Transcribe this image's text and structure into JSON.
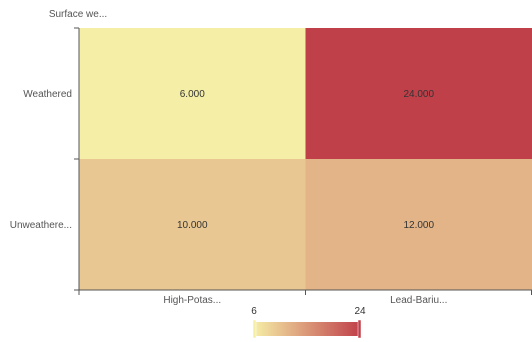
{
  "chart_data": {
    "type": "heatmap",
    "title": "",
    "ylabel": "Surface we...",
    "xlabel": "",
    "x_categories": [
      "High-Potas...",
      "Lead-Bariu..."
    ],
    "y_categories": [
      "Weathered",
      "Unweathere..."
    ],
    "cells": [
      {
        "x": "High-Potas...",
        "y": "Weathered",
        "value": 6,
        "label": "6.000"
      },
      {
        "x": "Lead-Bariu...",
        "y": "Weathered",
        "value": 24,
        "label": "24.000"
      },
      {
        "x": "High-Potas...",
        "y": "Unweathere...",
        "value": 10,
        "label": "10.000"
      },
      {
        "x": "Lead-Bariu...",
        "y": "Unweathere...",
        "value": 12,
        "label": "12.000"
      }
    ],
    "visual_map": {
      "min": 6,
      "max": 24,
      "min_label": "6",
      "max_label": "24",
      "color_min": "#f5eea6",
      "color_max": "#c0404a"
    },
    "grid": false,
    "legend": "bottom-center"
  }
}
